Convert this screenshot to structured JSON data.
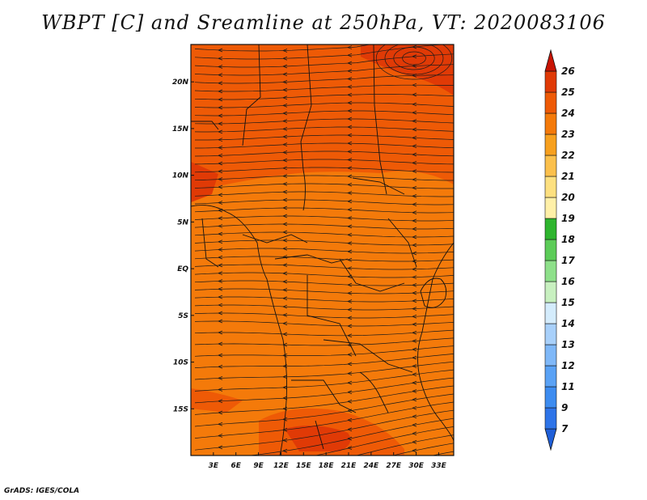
{
  "title": "WBPT [C] and Sreamline at 250hPa, VT: 2020083106",
  "credit": "GrADS: IGES/COLA",
  "map": {
    "lon_range": [
      0,
      35
    ],
    "lat_range": [
      -20,
      24
    ],
    "x_ticks": [
      {
        "value": 3,
        "label": "3E"
      },
      {
        "value": 6,
        "label": "6E"
      },
      {
        "value": 9,
        "label": "9E"
      },
      {
        "value": 12,
        "label": "12E"
      },
      {
        "value": 15,
        "label": "15E"
      },
      {
        "value": 18,
        "label": "18E"
      },
      {
        "value": 21,
        "label": "21E"
      },
      {
        "value": 24,
        "label": "24E"
      },
      {
        "value": 27,
        "label": "27E"
      },
      {
        "value": 30,
        "label": "30E"
      },
      {
        "value": 33,
        "label": "33E"
      }
    ],
    "y_ticks": [
      {
        "value": 20,
        "label": "20N"
      },
      {
        "value": 15,
        "label": "15N"
      },
      {
        "value": 10,
        "label": "10N"
      },
      {
        "value": 5,
        "label": "5N"
      },
      {
        "value": 0,
        "label": "EQ"
      },
      {
        "value": -5,
        "label": "5S"
      },
      {
        "value": -10,
        "label": "10S"
      },
      {
        "value": -15,
        "label": "15S"
      }
    ]
  },
  "colorbar": {
    "levels": [
      "7",
      "9",
      "11",
      "12",
      "13",
      "14",
      "15",
      "16",
      "17",
      "18",
      "19",
      "20",
      "21",
      "22",
      "23",
      "24",
      "25",
      "26"
    ],
    "colors": [
      "#1f5fd8",
      "#2e74e8",
      "#3d8cf0",
      "#5aa2f5",
      "#7fb8f8",
      "#a8d0fa",
      "#d4ecfc",
      "#c8f0c0",
      "#8ee08a",
      "#5ccc58",
      "#2eb52e",
      "#fff0a8",
      "#fde080",
      "#fbc04c",
      "#f7a01e",
      "#f47a0a",
      "#ee5a06",
      "#e03a06",
      "#c81404"
    ]
  },
  "chart_data": {
    "type": "heatmap",
    "title": "WBPT [C] and Sreamline at 250hPa, VT: 2020083106",
    "variable": "Wet-bulb potential temperature [C] with streamlines at 250hPa",
    "valid_time": "2020083106",
    "x_range": [
      0,
      35
    ],
    "y_range": [
      -20,
      24
    ],
    "regions": [
      {
        "area": "north of 12N",
        "value_range": "23-24",
        "color": "#ee5a06"
      },
      {
        "area": "NE corner near 31E 22N",
        "value_range": "24-25",
        "color": "#e03a06"
      },
      {
        "area": "equatorial belt 10N to 18S",
        "value_range": "22-23",
        "color": "#f47a0a"
      },
      {
        "area": "SE Africa 20E-28E 17S-20S",
        "value_range": "23-24",
        "color": "#ee5a06"
      }
    ],
    "flow": "predominantly easterly streamlines; anticyclonic swirl near 30E 22N; westerly curvature south of 12S"
  }
}
